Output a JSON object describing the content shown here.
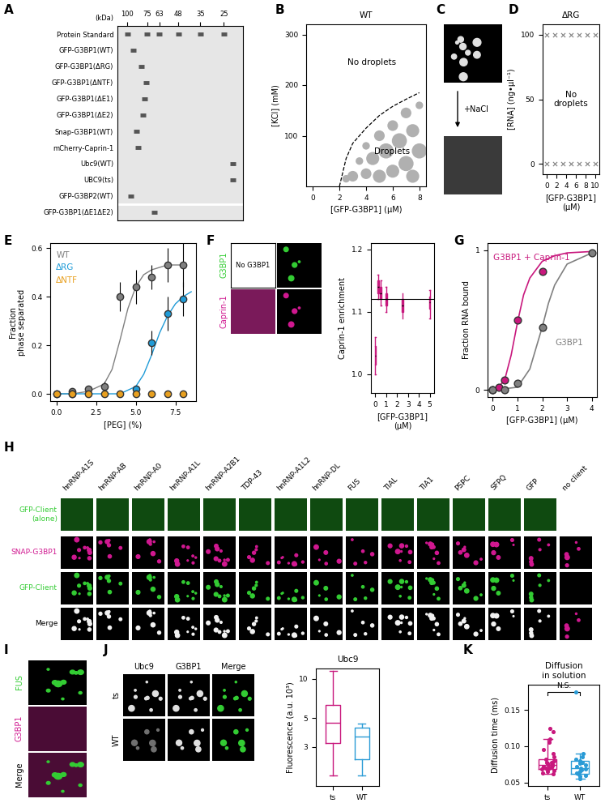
{
  "panel_labels": [
    "A",
    "B",
    "C",
    "D",
    "E",
    "F",
    "G",
    "H",
    "I",
    "J",
    "K"
  ],
  "gel": {
    "unit_label": "(kDa)",
    "ladder_kda": [
      100,
      75,
      63,
      48,
      35,
      25
    ],
    "kda_range": [
      115,
      19
    ],
    "lanes": [
      {
        "name": "Protein Standard",
        "band_kda": [
          100,
          75,
          63,
          48,
          35,
          25
        ]
      },
      {
        "name": "GFP-G3BP1(WT)",
        "band_kda": [
          92
        ]
      },
      {
        "name": "GFP-G3BP1(ΔRG)",
        "band_kda": [
          82
        ]
      },
      {
        "name": "GFP-G3BP1(ΔNTF)",
        "band_kda": [
          76
        ]
      },
      {
        "name": "GFP-G3BP1(ΔE1)",
        "band_kda": [
          78
        ]
      },
      {
        "name": "GFP-G3BP1(ΔE2)",
        "band_kda": [
          80
        ]
      },
      {
        "name": "Snap-G3BP1(WT)",
        "band_kda": [
          88
        ]
      },
      {
        "name": "mCherry-Caprin-1",
        "band_kda": [
          86
        ]
      },
      {
        "name": "Ubc9(WT)",
        "band_kda": [
          22
        ]
      },
      {
        "name": "UBC9(ts)",
        "band_kda": [
          22
        ]
      },
      {
        "name": "GFP-G3BP2(WT)",
        "band_kda": [
          95
        ]
      },
      {
        "name": "GFP-G3BP1(ΔE1ΔE2)",
        "band_kda": [
          68
        ]
      }
    ]
  },
  "chart_data": [
    {
      "type": "scatter",
      "title": "WT",
      "x_label": "[GFP-G3BP1] (µM)",
      "y_label": "[KCl] (mM)",
      "xlim": [
        -0.5,
        8.5
      ],
      "xticks": [
        0,
        2,
        4,
        6,
        8
      ],
      "ylim": [
        0,
        320
      ],
      "yticks": [
        100,
        200,
        300
      ],
      "boundary": {
        "x": [
          2,
          2.5,
          3,
          4,
          5,
          6,
          7,
          8
        ],
        "y": [
          0,
          55,
          85,
          115,
          140,
          158,
          172,
          185
        ],
        "line_style": "dashed"
      },
      "droplets": {
        "x": [
          2.5,
          3,
          3.5,
          4,
          4,
          4.5,
          5,
          5,
          5.5,
          6,
          6,
          6.5,
          7,
          7,
          7.5,
          7.5,
          8,
          8
        ],
        "y": [
          15,
          20,
          50,
          25,
          80,
          55,
          20,
          100,
          70,
          30,
          120,
          90,
          45,
          145,
          110,
          20,
          70,
          160
        ],
        "size": [
          1,
          2,
          1,
          2,
          1,
          3,
          3,
          2,
          4,
          3,
          2,
          4,
          4,
          2,
          3,
          3,
          4,
          1
        ],
        "color": "#b0b0b0"
      },
      "annotations": [
        "No droplets",
        "Droplets"
      ]
    },
    {
      "type": "scatter",
      "title": "ΔRG",
      "x_label": "[GFP-G3BP1]\n(µM)",
      "y_label": "[RNA] (ng•µl⁻¹)",
      "xlim": [
        -0.8,
        10.8
      ],
      "xticks": [
        0,
        2,
        4,
        6,
        8,
        10
      ],
      "ylim": [
        -8,
        108
      ],
      "yticks": [
        0,
        50,
        100
      ],
      "x": [
        0,
        1.67,
        3.33,
        5,
        6.67,
        8.33,
        10,
        0,
        1.67,
        3.33,
        5,
        6.67,
        8.33,
        10
      ],
      "y": [
        0,
        0,
        0,
        0,
        0,
        0,
        0,
        100,
        100,
        100,
        100,
        100,
        100,
        100
      ],
      "marker": "x",
      "color": "#808080",
      "annotations": [
        "No droplets"
      ]
    },
    {
      "type": "line",
      "x_label": "[PEG] (%)",
      "y_label": "Fraction\nphase separated",
      "xlim": [
        -0.4,
        8.8
      ],
      "xticks": [
        {
          "value": 0,
          "label": "0.0"
        },
        2.5,
        {
          "value": 5,
          "label": "5.0"
        },
        7.5
      ],
      "ylim": [
        -0.03,
        0.62
      ],
      "yticks": [
        {
          "value": 0,
          "label": "0.0"
        },
        0.2,
        0.4,
        0.6
      ],
      "series": [
        {
          "name": "WT",
          "color": "#808080",
          "marker": "o",
          "x": [
            0,
            1,
            2,
            3,
            4,
            5,
            6,
            7,
            8
          ],
          "values": [
            0.0,
            0.01,
            0.02,
            0.03,
            0.4,
            0.44,
            0.48,
            0.53,
            0.53
          ],
          "errors": [
            0.0,
            0.01,
            0.01,
            0.02,
            0.06,
            0.07,
            0.05,
            0.07,
            0.09
          ],
          "fit": {
            "x": [
              0,
              1,
              2,
              3,
              3.5,
              4,
              4.5,
              5,
              5.5,
              6,
              7,
              8
            ],
            "y": [
              0,
              0,
              0.01,
              0.04,
              0.1,
              0.22,
              0.35,
              0.44,
              0.49,
              0.51,
              0.53,
              0.53
            ]
          }
        },
        {
          "name": "ΔRG",
          "color": "#1f9bd7",
          "marker": "o",
          "x": [
            1,
            5,
            6,
            7,
            8
          ],
          "values": [
            0.0,
            0.02,
            0.21,
            0.33,
            0.39
          ],
          "errors": [
            0.0,
            0.01,
            0.05,
            0.07,
            0.07
          ],
          "fit": {
            "x": [
              0,
              4,
              5,
              5.5,
              6,
              6.5,
              7,
              7.5,
              8,
              8.5
            ],
            "y": [
              0,
              0,
              0.03,
              0.08,
              0.16,
              0.25,
              0.32,
              0.37,
              0.4,
              0.42
            ]
          }
        },
        {
          "name": "ΔNTF",
          "color": "#e8a020",
          "marker": "o",
          "x": [
            0,
            1,
            2,
            3,
            4,
            5,
            6,
            7,
            8
          ],
          "values": [
            0,
            0,
            0,
            0,
            0,
            0,
            0,
            0,
            0
          ],
          "errors": [
            0,
            0,
            0,
            0,
            0,
            0,
            0,
            0,
            0
          ]
        }
      ]
    },
    {
      "type": "box",
      "x_label": "[GFP-G3BP1]\n(µM)",
      "y_label": "Caprin-1 enrichment",
      "xlim": [
        -0.4,
        5.4
      ],
      "xticks": [
        0,
        1,
        2,
        3,
        4,
        5
      ],
      "ylim": [
        0.97,
        1.21
      ],
      "yticks": [
        {
          "value": 1.0,
          "label": "1.0"
        },
        1.1,
        1.2
      ],
      "reference_line": 1.12,
      "color": "#c8187d",
      "x": [
        0,
        0.25,
        0.5,
        1,
        2.5,
        5
      ],
      "boxes": [
        {
          "whislo": 1.0,
          "q1": 1.015,
          "med": 1.03,
          "q3": 1.045,
          "whishi": 1.06
        },
        {
          "whislo": 1.12,
          "q1": 1.13,
          "med": 1.14,
          "q3": 1.15,
          "whishi": 1.16
        },
        {
          "whislo": 1.11,
          "q1": 1.12,
          "med": 1.13,
          "q3": 1.14,
          "whishi": 1.15
        },
        {
          "whislo": 1.1,
          "q1": 1.11,
          "med": 1.12,
          "q3": 1.13,
          "whishi": 1.14
        },
        {
          "whislo": 1.09,
          "q1": 1.1,
          "med": 1.11,
          "q3": 1.12,
          "whishi": 1.13
        },
        {
          "whislo": 1.09,
          "q1": 1.105,
          "med": 1.115,
          "q3": 1.125,
          "whishi": 1.135
        }
      ]
    },
    {
      "type": "scatter",
      "x_label": "[GFP-G3BP1] (µM)",
      "y_label": "Fraction RNA bound",
      "xlim": [
        -0.2,
        4.2
      ],
      "xticks": [
        0,
        1,
        2,
        3,
        4
      ],
      "ylim": [
        -0.05,
        1.05
      ],
      "yticks": [
        0,
        1
      ],
      "series": [
        {
          "name": "G3BP1 + Caprin-1",
          "color": "#c8187d",
          "marker": "o",
          "x": [
            0,
            0.25,
            0.5,
            1,
            2
          ],
          "values": [
            0.0,
            0.02,
            0.07,
            0.5,
            0.85
          ],
          "fit": {
            "x": [
              0,
              0.25,
              0.5,
              0.75,
              1,
              1.25,
              1.5,
              2,
              2.5,
              3,
              4
            ],
            "y": [
              0,
              0.02,
              0.08,
              0.25,
              0.48,
              0.68,
              0.8,
              0.92,
              0.96,
              0.98,
              0.99
            ]
          }
        },
        {
          "name": "G3BP1",
          "color": "#808080",
          "marker": "o",
          "x": [
            0,
            0.5,
            1,
            2,
            4
          ],
          "values": [
            0.0,
            0.0,
            0.05,
            0.45,
            0.98
          ],
          "fit": {
            "x": [
              0,
              1,
              1.5,
              1.75,
              2,
              2.25,
              2.5,
              3,
              4
            ],
            "y": [
              0,
              0.02,
              0.15,
              0.3,
              0.45,
              0.62,
              0.75,
              0.9,
              0.98
            ]
          }
        }
      ]
    },
    {
      "type": "box",
      "title": "Ubc9",
      "y_label": "Fluorescence (a.u. 10³)",
      "log": "y",
      "categories": [
        "ts",
        "WT"
      ],
      "colors": [
        "#c8187d",
        "#2a9bd6"
      ],
      "ylim": [
        1.5,
        12
      ],
      "yticks": [
        3,
        5,
        10
      ],
      "boxes": [
        {
          "whislo": 1.8,
          "q1": 3.2,
          "med": 4.6,
          "q3": 6.3,
          "whishi": 11.5
        },
        {
          "whislo": 1.8,
          "q1": 2.4,
          "med": 3.6,
          "q3": 4.2,
          "whishi": 4.5
        }
      ]
    },
    {
      "type": "box",
      "title": "Diffusion\nin solution",
      "y_label": "Diffusion time (ms)",
      "categories": [
        "ts",
        "WT"
      ],
      "colors": [
        "#c8187d",
        "#2a9bd6"
      ],
      "ylim": [
        0.045,
        0.185
      ],
      "yticks": [
        {
          "value": 0.05,
          "label": "0.05"
        },
        {
          "value": 0.1,
          "label": "0.10"
        },
        {
          "value": 0.15,
          "label": "0.15"
        }
      ],
      "boxes": [
        {
          "whislo": 0.062,
          "q1": 0.068,
          "med": 0.074,
          "q3": 0.082,
          "whishi": 0.11
        },
        {
          "whislo": 0.055,
          "q1": 0.062,
          "med": 0.07,
          "q3": 0.08,
          "whishi": 0.09
        }
      ],
      "points": [
        [
          0.062,
          0.065,
          0.066,
          0.068,
          0.07,
          0.07,
          0.071,
          0.072,
          0.073,
          0.074,
          0.075,
          0.076,
          0.077,
          0.078,
          0.08,
          0.082,
          0.085,
          0.09,
          0.095,
          0.105,
          0.11,
          0.12,
          0.125,
          0.063,
          0.069
        ],
        [
          0.055,
          0.058,
          0.06,
          0.062,
          0.063,
          0.065,
          0.067,
          0.068,
          0.07,
          0.072,
          0.074,
          0.076,
          0.078,
          0.08,
          0.082,
          0.085,
          0.09,
          0.175
        ]
      ],
      "annotations": [
        "N.S."
      ]
    }
  ],
  "micrographs": {
    "C": {
      "treatment": "+NaCl"
    },
    "F": {
      "empty_panel": "No G3BP1",
      "rows": [
        "G3BP1",
        "Caprin-1"
      ]
    },
    "H": {
      "clients": [
        "hnRNP-A1S",
        "hnRNP-AB",
        "hnRNP-A0",
        "hnRNP-A1L",
        "hnRNP-A2B1",
        "TDP-43",
        "hnRNP-A1L2",
        "hnRNP-DL",
        "FUS",
        "TIAL",
        "TIA1",
        "PSPC",
        "SFPQ",
        "GFP"
      ],
      "extra_column": "no client",
      "rows": [
        "GFP-Client\n(alone)",
        "SNAP-G3BP1",
        "GFP-Client",
        "Merge"
      ]
    },
    "I": {
      "rows": [
        "FUS",
        "G3BP1",
        "Merge"
      ]
    },
    "J": {
      "columns": [
        "Ubc9",
        "G3BP1",
        "Merge"
      ],
      "rows": [
        "ts",
        "WT"
      ]
    }
  }
}
